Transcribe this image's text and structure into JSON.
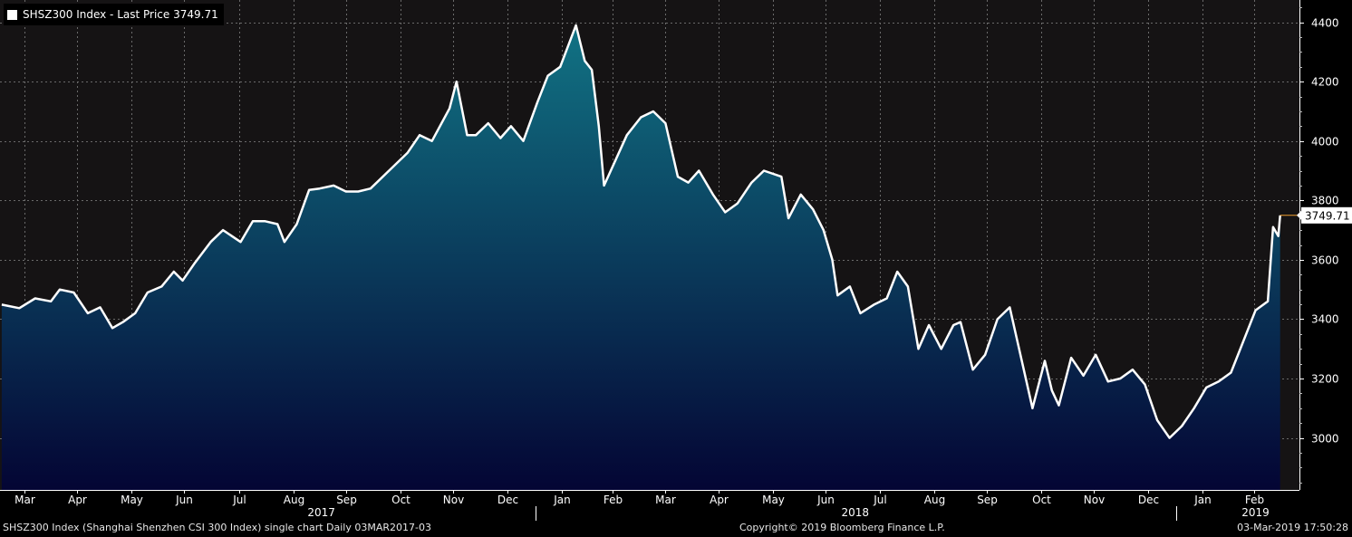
{
  "legend": {
    "text": "SHSZ300 Index - Last Price 3749.71"
  },
  "footer": {
    "left": "SHSZ300 Index (Shanghai Shenzhen CSI 300 Index) single chart  Daily 03MAR2017-03",
    "copyright": "Copyright© 2019 Bloomberg Finance L.P.",
    "timestamp": "03-Mar-2019 17:50:28"
  },
  "colors": {
    "background": "#000000",
    "plot_background": "#151314",
    "line": "#ffffff",
    "fill_top": "#117384",
    "fill_bottom": "#040534",
    "last_price_marker": "#f0a030"
  },
  "chart_data": {
    "type": "area",
    "series": [
      {
        "name": "SHSZ300 Index",
        "x": [
          "2017-03-03",
          "2017-03-13",
          "2017-03-22",
          "2017-03-31",
          "2017-04-05",
          "2017-04-13",
          "2017-04-21",
          "2017-04-28",
          "2017-05-05",
          "2017-05-11",
          "2017-05-18",
          "2017-05-25",
          "2017-06-02",
          "2017-06-09",
          "2017-06-14",
          "2017-06-21",
          "2017-06-30",
          "2017-07-07",
          "2017-07-17",
          "2017-07-24",
          "2017-07-31",
          "2017-08-07",
          "2017-08-11",
          "2017-08-18",
          "2017-08-25",
          "2017-08-31",
          "2017-09-08",
          "2017-09-15",
          "2017-09-22",
          "2017-09-29",
          "2017-10-13",
          "2017-10-20",
          "2017-10-27",
          "2017-11-03",
          "2017-11-13",
          "2017-11-17",
          "2017-11-23",
          "2017-11-28",
          "2017-12-05",
          "2017-12-12",
          "2017-12-18",
          "2017-12-25",
          "2018-01-02",
          "2018-01-08",
          "2018-01-15",
          "2018-01-24",
          "2018-01-29",
          "2018-02-02",
          "2018-02-06",
          "2018-02-09",
          "2018-02-22",
          "2018-03-02",
          "2018-03-09",
          "2018-03-16",
          "2018-03-23",
          "2018-03-29",
          "2018-04-04",
          "2018-04-12",
          "2018-04-19",
          "2018-04-26",
          "2018-05-04",
          "2018-05-11",
          "2018-05-21",
          "2018-05-25",
          "2018-06-01",
          "2018-06-08",
          "2018-06-14",
          "2018-06-19",
          "2018-06-22",
          "2018-06-29",
          "2018-07-05",
          "2018-07-13",
          "2018-07-20",
          "2018-07-26",
          "2018-08-01",
          "2018-08-07",
          "2018-08-13",
          "2018-08-20",
          "2018-08-27",
          "2018-08-31",
          "2018-09-07",
          "2018-09-14",
          "2018-09-21",
          "2018-09-28",
          "2018-10-11",
          "2018-10-18",
          "2018-10-22",
          "2018-10-26",
          "2018-11-02",
          "2018-11-09",
          "2018-11-16",
          "2018-11-23",
          "2018-11-30",
          "2018-12-07",
          "2018-12-14",
          "2018-12-21",
          "2018-12-28",
          "2019-01-04",
          "2019-01-11",
          "2019-01-18",
          "2019-01-25",
          "2019-02-01",
          "2019-02-15",
          "2019-02-22",
          "2019-02-25",
          "2019-02-28",
          "2019-03-01"
        ],
        "y": [
          3449,
          3437,
          3470,
          3460,
          3500,
          3490,
          3420,
          3440,
          3370,
          3390,
          3420,
          3490,
          3510,
          3560,
          3530,
          3590,
          3660,
          3700,
          3660,
          3730,
          3730,
          3720,
          3660,
          3720,
          3835,
          3840,
          3850,
          3830,
          3830,
          3840,
          3920,
          3960,
          4020,
          4000,
          4110,
          4200,
          4020,
          4020,
          4060,
          4010,
          4050,
          4000,
          4130,
          4220,
          4250,
          4390,
          4270,
          4240,
          4050,
          3850,
          4020,
          4080,
          4100,
          4060,
          3880,
          3860,
          3900,
          3820,
          3760,
          3790,
          3860,
          3900,
          3880,
          3740,
          3820,
          3770,
          3700,
          3600,
          3480,
          3510,
          3420,
          3450,
          3470,
          3560,
          3510,
          3300,
          3380,
          3300,
          3380,
          3390,
          3230,
          3280,
          3400,
          3440,
          3100,
          3260,
          3160,
          3110,
          3270,
          3210,
          3280,
          3190,
          3200,
          3230,
          3180,
          3060,
          3000,
          3040,
          3100,
          3170,
          3190,
          3220,
          3430,
          3460,
          3710,
          3680,
          3749.71
        ]
      }
    ],
    "y_ticks": [
      3000,
      3200,
      3400,
      3600,
      3800,
      4000,
      4200,
      4400
    ],
    "ylim": [
      2825,
      4475
    ],
    "xlim": [
      "2017-03-02",
      "2019-03-12"
    ],
    "month_ticks": [
      {
        "label": "Mar",
        "date": "2017-03-16"
      },
      {
        "label": "Apr",
        "date": "2017-04-15"
      },
      {
        "label": "May",
        "date": "2017-05-16"
      },
      {
        "label": "Jun",
        "date": "2017-06-15"
      },
      {
        "label": "Jul",
        "date": "2017-07-16"
      },
      {
        "label": "Aug",
        "date": "2017-08-16"
      },
      {
        "label": "Sep",
        "date": "2017-09-15"
      },
      {
        "label": "Oct",
        "date": "2017-10-16"
      },
      {
        "label": "Nov",
        "date": "2017-11-15"
      },
      {
        "label": "Dec",
        "date": "2017-12-16"
      },
      {
        "label": "Jan",
        "date": "2018-01-16"
      },
      {
        "label": "Feb",
        "date": "2018-02-14"
      },
      {
        "label": "Mar",
        "date": "2018-03-16"
      },
      {
        "label": "Apr",
        "date": "2018-04-15"
      },
      {
        "label": "May",
        "date": "2018-05-16"
      },
      {
        "label": "Jun",
        "date": "2018-06-15"
      },
      {
        "label": "Jul",
        "date": "2018-07-16"
      },
      {
        "label": "Aug",
        "date": "2018-08-16"
      },
      {
        "label": "Sep",
        "date": "2018-09-15"
      },
      {
        "label": "Oct",
        "date": "2018-10-16"
      },
      {
        "label": "Nov",
        "date": "2018-11-15"
      },
      {
        "label": "Dec",
        "date": "2018-12-16"
      },
      {
        "label": "Jan",
        "date": "2019-01-16"
      },
      {
        "label": "Feb",
        "date": "2019-02-14"
      }
    ],
    "year_labels": [
      {
        "label": "2017",
        "date": "2017-09-01"
      },
      {
        "label": "2018",
        "date": "2018-07-02"
      },
      {
        "label": "2019",
        "date": "2019-02-15"
      }
    ],
    "year_boundaries": [
      "2018-01-01",
      "2019-01-01"
    ],
    "last_price_label": "3749.71",
    "grid": true
  }
}
